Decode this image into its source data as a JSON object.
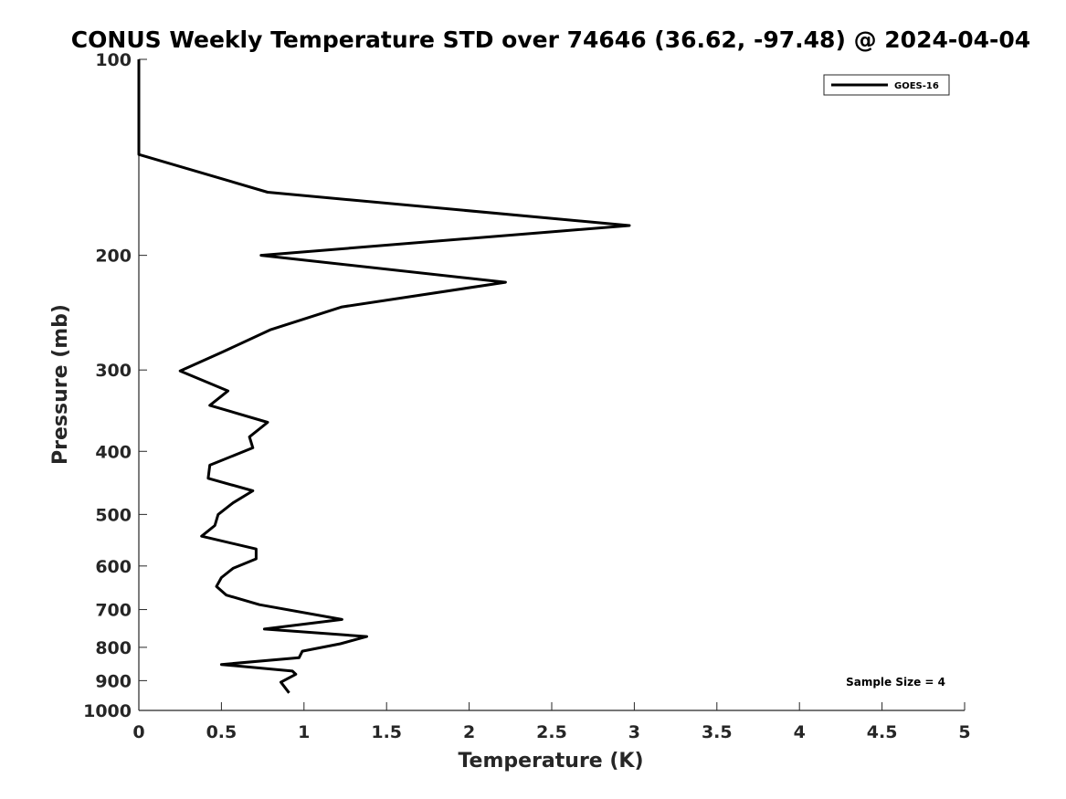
{
  "chart_data": {
    "type": "line",
    "title": "CONUS Weekly Temperature STD over 74646 (36.62, -97.48) @ 2024-04-04",
    "xlabel": "Temperature (K)",
    "ylabel": "Pressure (mb)",
    "xlim": [
      0,
      5
    ],
    "ylim": [
      100,
      1000
    ],
    "y_scale": "log",
    "y_reversed": true,
    "x_ticks": [
      0,
      0.5,
      1,
      1.5,
      2,
      2.5,
      3,
      3.5,
      4,
      4.5,
      5
    ],
    "x_tick_labels": [
      "0",
      "0.5",
      "1",
      "1.5",
      "2",
      "2.5",
      "3",
      "3.5",
      "4",
      "4.5",
      "5"
    ],
    "y_ticks": [
      100,
      200,
      300,
      400,
      500,
      600,
      700,
      800,
      900,
      1000
    ],
    "y_tick_labels": [
      "100",
      "200",
      "300",
      "400",
      "500",
      "600",
      "700",
      "800",
      "900",
      "1000"
    ],
    "grid": false,
    "legend_position": "top-right",
    "annotation": "Sample Size = 4",
    "series": [
      {
        "name": "GOES-16",
        "color": "#000000",
        "points": [
          {
            "x": 0.0,
            "p": 100
          },
          {
            "x": 0.0,
            "p": 140
          },
          {
            "x": 0.78,
            "p": 160
          },
          {
            "x": 2.97,
            "p": 180
          },
          {
            "x": 0.74,
            "p": 200
          },
          {
            "x": 2.22,
            "p": 220
          },
          {
            "x": 1.23,
            "p": 240
          },
          {
            "x": 0.8,
            "p": 260
          },
          {
            "x": 0.5,
            "p": 282
          },
          {
            "x": 0.25,
            "p": 301
          },
          {
            "x": 0.54,
            "p": 323
          },
          {
            "x": 0.43,
            "p": 340
          },
          {
            "x": 0.78,
            "p": 361
          },
          {
            "x": 0.67,
            "p": 380
          },
          {
            "x": 0.69,
            "p": 395
          },
          {
            "x": 0.43,
            "p": 420
          },
          {
            "x": 0.42,
            "p": 440
          },
          {
            "x": 0.69,
            "p": 460
          },
          {
            "x": 0.57,
            "p": 480
          },
          {
            "x": 0.48,
            "p": 500
          },
          {
            "x": 0.46,
            "p": 520
          },
          {
            "x": 0.38,
            "p": 540
          },
          {
            "x": 0.71,
            "p": 565
          },
          {
            "x": 0.71,
            "p": 585
          },
          {
            "x": 0.57,
            "p": 605
          },
          {
            "x": 0.5,
            "p": 625
          },
          {
            "x": 0.47,
            "p": 645
          },
          {
            "x": 0.53,
            "p": 665
          },
          {
            "x": 0.73,
            "p": 688
          },
          {
            "x": 1.23,
            "p": 725
          },
          {
            "x": 0.76,
            "p": 750
          },
          {
            "x": 1.38,
            "p": 770
          },
          {
            "x": 1.22,
            "p": 790
          },
          {
            "x": 0.99,
            "p": 811
          },
          {
            "x": 0.97,
            "p": 830
          },
          {
            "x": 0.5,
            "p": 850
          },
          {
            "x": 0.93,
            "p": 870
          },
          {
            "x": 0.95,
            "p": 880
          },
          {
            "x": 0.86,
            "p": 905
          },
          {
            "x": 0.91,
            "p": 940
          }
        ]
      }
    ]
  }
}
